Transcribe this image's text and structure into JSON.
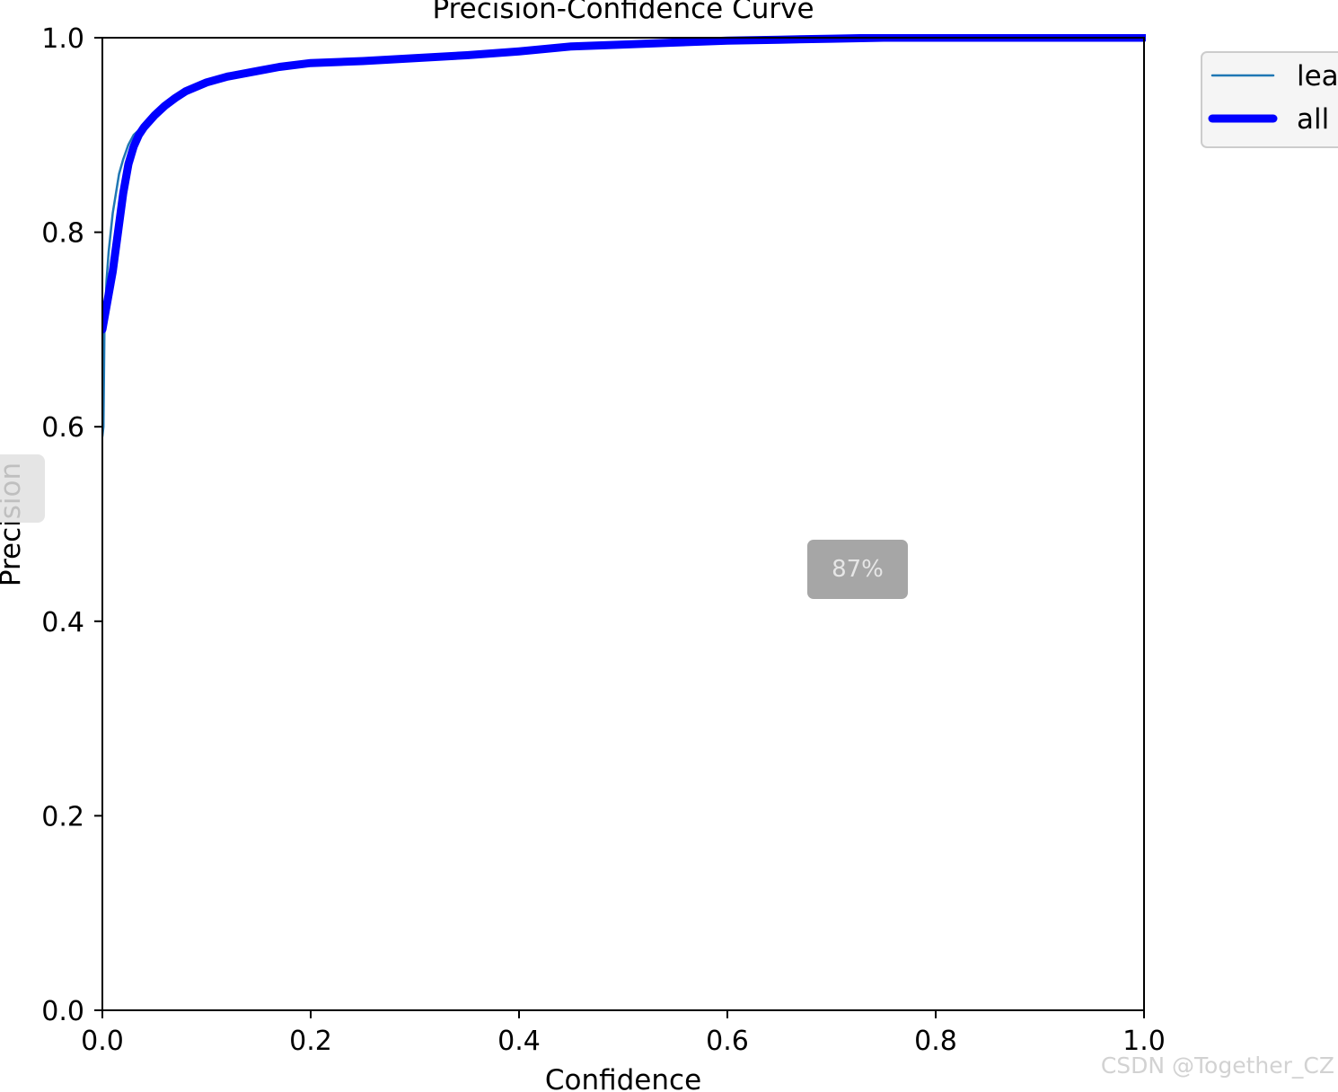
{
  "chart_data": {
    "type": "line",
    "title": "Precision-Confidence Curve",
    "xlabel": "Confidence",
    "ylabel": "Precision",
    "xlim": [
      0,
      1
    ],
    "ylim": [
      0,
      1
    ],
    "xticks": [
      "0.0",
      "0.2",
      "0.4",
      "0.6",
      "0.8",
      "1.0"
    ],
    "yticks": [
      "0.0",
      "0.2",
      "0.4",
      "0.6",
      "0.8",
      "1.0"
    ],
    "grid": false,
    "legend": "upper right, outside plot",
    "series": [
      {
        "name": "lea",
        "color": "#1f77b4",
        "x": [
          0.0,
          0.001,
          0.002,
          0.004,
          0.006,
          0.008,
          0.01,
          0.013,
          0.016,
          0.02,
          0.025,
          0.03,
          0.035,
          0.04,
          0.05,
          0.06,
          0.07,
          0.08,
          0.1,
          0.12,
          0.15,
          0.17,
          0.2,
          0.25,
          0.3,
          0.35,
          0.4,
          0.45,
          0.5,
          0.55,
          0.6,
          0.65,
          0.7,
          0.75,
          0.8,
          0.9,
          1.0
        ],
        "y": [
          0.59,
          0.6,
          0.7,
          0.75,
          0.78,
          0.8,
          0.82,
          0.84,
          0.86,
          0.875,
          0.89,
          0.9,
          0.905,
          0.912,
          0.92,
          0.93,
          0.938,
          0.945,
          0.954,
          0.96,
          0.966,
          0.97,
          0.974,
          0.976,
          0.979,
          0.982,
          0.986,
          0.991,
          0.993,
          0.995,
          0.997,
          0.998,
          0.999,
          1.0,
          1.0,
          1.0,
          1.0
        ]
      },
      {
        "name": "all",
        "color": "#0000ff",
        "x": [
          0.0,
          0.005,
          0.01,
          0.015,
          0.02,
          0.025,
          0.03,
          0.035,
          0.04,
          0.05,
          0.06,
          0.07,
          0.08,
          0.1,
          0.12,
          0.15,
          0.17,
          0.2,
          0.25,
          0.3,
          0.35,
          0.4,
          0.45,
          0.5,
          0.55,
          0.6,
          0.65,
          0.7,
          0.75,
          0.8,
          0.9,
          1.0
        ],
        "y": [
          0.7,
          0.73,
          0.76,
          0.8,
          0.84,
          0.87,
          0.888,
          0.9,
          0.908,
          0.92,
          0.93,
          0.938,
          0.945,
          0.954,
          0.96,
          0.966,
          0.97,
          0.974,
          0.976,
          0.979,
          0.982,
          0.986,
          0.991,
          0.993,
          0.995,
          0.997,
          0.998,
          0.999,
          1.0,
          1.0,
          1.0,
          1.0
        ]
      }
    ]
  },
  "overlay": {
    "zoom_level": "87%",
    "watermark": "CSDN @Together_CZ"
  }
}
